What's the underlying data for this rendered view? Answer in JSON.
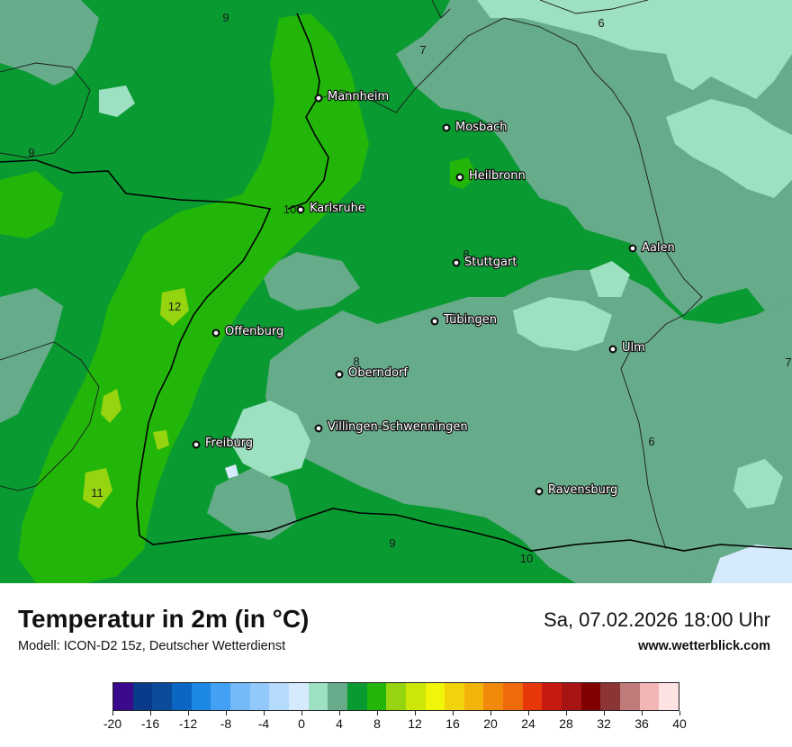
{
  "map": {
    "cities": [
      {
        "name": "Mannheim"
      },
      {
        "name": "Mosbach"
      },
      {
        "name": "Heilbronn"
      },
      {
        "name": "Karlsruhe"
      },
      {
        "name": "Aalen"
      },
      {
        "name": "Stuttgart"
      },
      {
        "name": "Tübingen"
      },
      {
        "name": "Offenburg"
      },
      {
        "name": "Ulm"
      },
      {
        "name": "Oberndorf"
      },
      {
        "name": "Villingen-Schwenningen"
      },
      {
        "name": "Freiburg"
      },
      {
        "name": "Ravensburg"
      }
    ],
    "isotherm_labels": [
      "9",
      "7",
      "6",
      "9",
      "10",
      "8",
      "12",
      "8",
      "7",
      "6",
      "11",
      "9",
      "10"
    ]
  },
  "header": {
    "title": "Temperatur in 2m (in °C)",
    "subtitle": "Modell: ICON-D2 15z, Deutscher Wetterdienst",
    "datetime": "Sa, 07.02.2026 18:00 Uhr",
    "website": "www.wetterblick.com"
  },
  "colorbar": {
    "tick_labels": [
      "-20",
      "-16",
      "-12",
      "-8",
      "-4",
      "0",
      "4",
      "8",
      "12",
      "16",
      "20",
      "24",
      "28",
      "32",
      "36",
      "40"
    ],
    "colors": [
      "#3b0a8c",
      "#0a3a8a",
      "#0a4c9a",
      "#0a66c2",
      "#1e88e5",
      "#42a0f5",
      "#74b9f8",
      "#93c9fa",
      "#b4dafc",
      "#d6eafd",
      "#9ee0c2",
      "#66ab8a",
      "#0a9a32",
      "#22b60a",
      "#96d410",
      "#cde60a",
      "#f1f50a",
      "#f2d20a",
      "#f2b40a",
      "#f18a0a",
      "#ee6a0a",
      "#e8380a",
      "#c81a12",
      "#a81414",
      "#800000",
      "#8c3535",
      "#c07a7a",
      "#f2b6b6",
      "#fde2e2"
    ],
    "range": [
      -20,
      40
    ],
    "step": 2
  }
}
